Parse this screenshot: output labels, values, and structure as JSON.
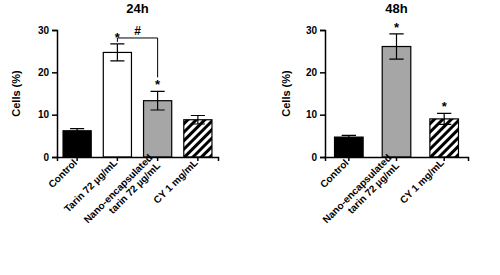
{
  "chart_data": [
    {
      "type": "bar",
      "title": "24h",
      "y_label": "Cells (%)",
      "categories": [
        "Control",
        "Tarin 72 µg/mL",
        "Nano-encapsulated tarin 72 µg/mL",
        "CY 1 mg/mL"
      ],
      "values": [
        6.2,
        24.7,
        13.3,
        8.8
      ],
      "errors": [
        0.5,
        2.0,
        2.2,
        1.0
      ],
      "colors": [
        "#000000",
        "#ffffff",
        "#a6a6a6",
        "#000000"
      ],
      "ylim": [
        0,
        30
      ],
      "yticks": [
        0,
        10,
        20,
        30
      ],
      "significance": [
        null,
        "*",
        "*",
        null
      ],
      "comparisons": [
        {
          "between": [
            "Tarin 72 µg/mL",
            "Nano-encapsulated tarin 72 µg/mL"
          ],
          "label": "#"
        }
      ]
    },
    {
      "type": "bar",
      "title": "48h",
      "y_label": "Cells (%)",
      "categories": [
        "Control",
        "Nano-encapsulated tarin 72 µg/mL",
        "CY 1 mg/mL"
      ],
      "values": [
        4.7,
        26.1,
        9.0
      ],
      "errors": [
        0.4,
        3.0,
        1.3
      ],
      "colors": [
        "#000000",
        "#a6a6a6",
        "#000000"
      ],
      "ylim": [
        0,
        30
      ],
      "yticks": [
        0,
        10,
        20,
        30
      ],
      "significance": [
        null,
        "*",
        "*"
      ]
    }
  ]
}
